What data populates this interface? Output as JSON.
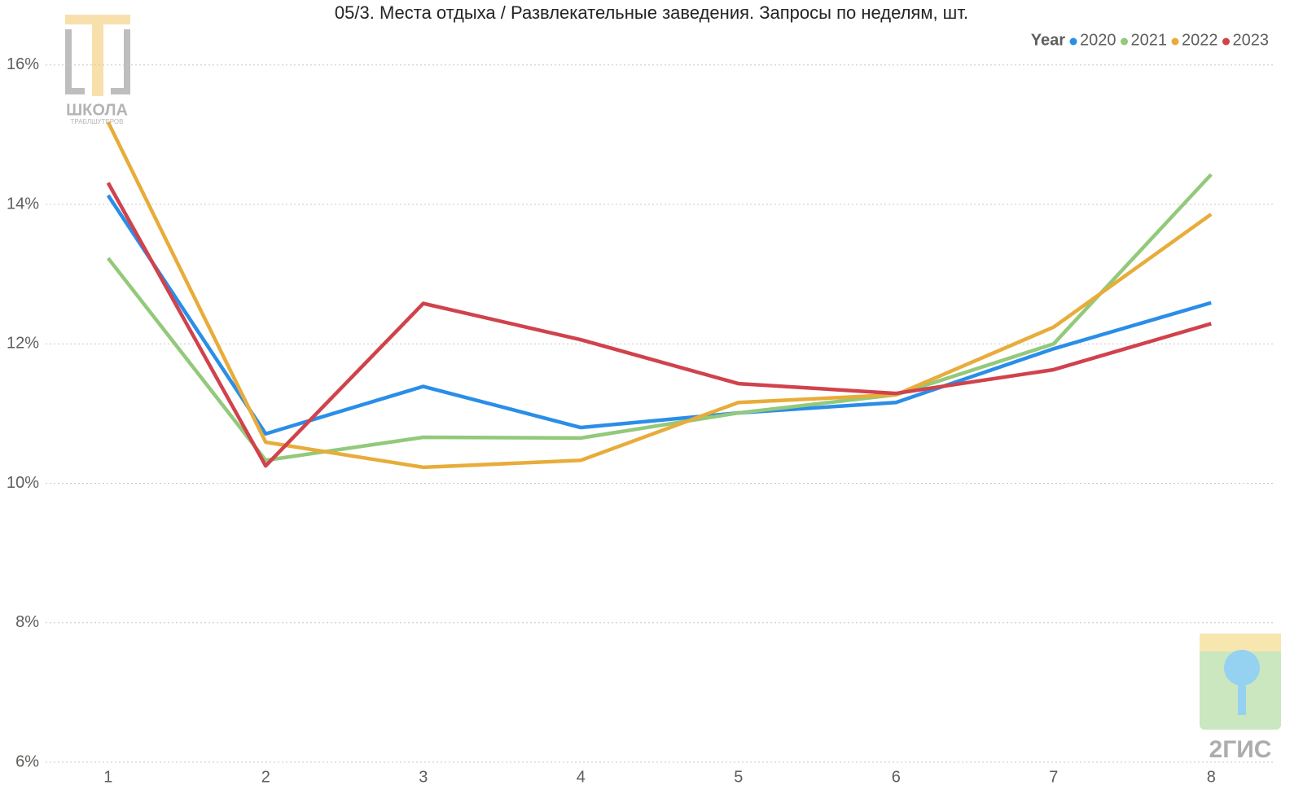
{
  "chart_data": {
    "type": "line",
    "title": "05/3. Места отдыха / Развлекательные заведения. Запросы по неделям, шт.",
    "legend_title": "Year",
    "legend_position": "top-right",
    "grid": true,
    "x": [
      1,
      2,
      3,
      4,
      5,
      6,
      7,
      8
    ],
    "xlim": [
      0.5,
      8.5
    ],
    "xticks": [
      1,
      2,
      3,
      4,
      5,
      6,
      7,
      8
    ],
    "ylim": [
      6,
      16.5
    ],
    "yticks": [
      {
        "value": 6,
        "label": "6%"
      },
      {
        "value": 8,
        "label": "8%"
      },
      {
        "value": 10,
        "label": "10%"
      },
      {
        "value": 12,
        "label": "12%"
      },
      {
        "value": 14,
        "label": "14%"
      },
      {
        "value": 16,
        "label": "16%"
      }
    ],
    "series": [
      {
        "name": "2020",
        "color": "#2a8ee8",
        "values": [
          14.13,
          10.71,
          11.39,
          10.8,
          11.01,
          11.16,
          11.93,
          12.59
        ]
      },
      {
        "name": "2021",
        "color": "#93c97a",
        "values": [
          13.23,
          10.33,
          10.66,
          10.65,
          11.01,
          11.27,
          12.0,
          14.43
        ]
      },
      {
        "name": "2022",
        "color": "#e8ac3a",
        "values": [
          15.18,
          10.59,
          10.23,
          10.33,
          11.16,
          11.27,
          12.24,
          13.86
        ]
      },
      {
        "name": "2023",
        "color": "#d0424c",
        "values": [
          14.31,
          10.25,
          12.58,
          12.06,
          11.43,
          11.29,
          11.63,
          12.29
        ]
      }
    ],
    "annotations": [
      "ШКОЛА",
      "ТРАБЛШУТЕРОВ",
      "2ГИС"
    ]
  }
}
